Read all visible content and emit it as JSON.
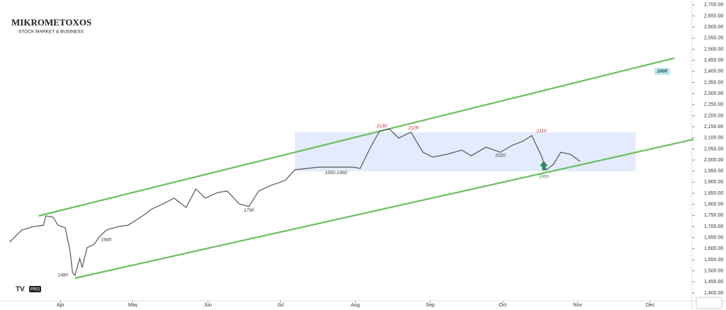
{
  "chart_data": {
    "type": "line",
    "brand": {
      "name": "MIKROMETOXOS",
      "tagline": "STOCK MARKET & BUSINESS",
      "badge": "PRO"
    },
    "x": [
      70,
      75,
      80,
      84,
      85,
      88,
      90,
      93,
      95,
      96,
      97,
      99,
      100,
      102,
      105,
      107,
      110,
      115,
      119,
      125,
      129,
      134,
      138,
      143,
      147,
      151,
      156,
      160,
      165,
      169,
      173,
      178,
      184,
      188,
      193,
      198,
      204,
      212,
      215,
      219,
      223,
      227,
      231,
      236,
      241,
      245,
      251,
      257,
      261,
      267,
      273,
      278,
      282,
      286,
      290,
      292,
      295,
      298,
      302,
      306
    ],
    "series": [
      {
        "color": "#555555",
        "values": [
          1630,
          1684,
          1700,
          1706,
          1748,
          1742,
          1706,
          1694,
          1588,
          1492,
          1480,
          1556,
          1515,
          1604,
          1620,
          1652,
          1684,
          1700,
          1706,
          1748,
          1780,
          1805,
          1828,
          1786,
          1869,
          1828,
          1853,
          1860,
          1802,
          1790,
          1860,
          1885,
          1908,
          1956,
          1962,
          1968,
          1968,
          1968,
          1962,
          2051,
          2130,
          2141,
          2099,
          2126,
          2035,
          2013,
          2026,
          2045,
          2019,
          2058,
          2035,
          2067,
          2083,
          2110,
          2019,
          1955,
          1981,
          2035,
          2026,
          1994
        ]
      }
    ],
    "channels": [
      {
        "color": "#6abf5e",
        "x": [
          82,
          345
        ],
        "values": [
          1748,
          2460
        ]
      },
      {
        "color": "#6abf5e",
        "x": [
          97,
          353
        ],
        "values": [
          1467,
          2093
        ]
      }
    ],
    "range_box": {
      "color": "#dce6fb",
      "x": [
        188,
        329
      ],
      "values": [
        1949,
        2125
      ]
    },
    "annotations": [
      {
        "text": "2130",
        "x": 224,
        "y": 2152,
        "color": "#c62828"
      },
      {
        "text": "2126",
        "x": 237,
        "y": 2145,
        "color": "#c62828"
      },
      {
        "text": "2110",
        "x": 290,
        "y": 2130,
        "color": "#c62828"
      },
      {
        "text": "2020",
        "x": 273,
        "y": 2020,
        "color": "#333333"
      },
      {
        "text": "1955",
        "x": 291,
        "y": 1925,
        "color": "#2e8b57"
      },
      {
        "text": "1950-1960",
        "x": 205,
        "y": 1942,
        "color": "#333333"
      },
      {
        "text": "1790",
        "x": 169,
        "y": 1772,
        "color": "#333333"
      },
      {
        "text": "1645",
        "x": 110,
        "y": 1640,
        "color": "#333333"
      },
      {
        "text": "1480",
        "x": 92,
        "y": 1480,
        "color": "#333333"
      },
      {
        "text": "2400",
        "x": 340,
        "y": 2400,
        "color": "#1a4d5c"
      }
    ],
    "xlim": [
      66,
      352
    ],
    "xticks": [
      {
        "value": 91,
        "label": "Apr"
      },
      {
        "value": 121,
        "label": "May"
      },
      {
        "value": 152,
        "label": "Jun"
      },
      {
        "value": 182,
        "label": "Jul"
      },
      {
        "value": 213,
        "label": "Aug"
      },
      {
        "value": 244,
        "label": "Sep"
      },
      {
        "value": 274,
        "label": "Oct"
      },
      {
        "value": 305,
        "label": "Nov"
      },
      {
        "value": 335,
        "label": "Dec"
      }
    ],
    "ylim": [
      1368,
      2722
    ],
    "yticks": [
      {
        "value": 1400,
        "label": "1,400.00"
      },
      {
        "value": 1450,
        "label": "1,450.00"
      },
      {
        "value": 1500,
        "label": "1,500.00"
      },
      {
        "value": 1550,
        "label": "1,550.00"
      },
      {
        "value": 1600,
        "label": "1,600.00"
      },
      {
        "value": 1650,
        "label": "1,650.00"
      },
      {
        "value": 1700,
        "label": "1,700.00"
      },
      {
        "value": 1750,
        "label": "1,750.00"
      },
      {
        "value": 1800,
        "label": "1,800.00"
      },
      {
        "value": 1850,
        "label": "1,850.00"
      },
      {
        "value": 1900,
        "label": "1,900.00"
      },
      {
        "value": 1950,
        "label": "1,950.00"
      },
      {
        "value": 2000,
        "label": "2,000.00"
      },
      {
        "value": 2050,
        "label": "2,050.00"
      },
      {
        "value": 2100,
        "label": "2,100.00"
      },
      {
        "value": 2150,
        "label": "2,150.00"
      },
      {
        "value": 2200,
        "label": "2,200.00"
      },
      {
        "value": 2250,
        "label": "2,250.00"
      },
      {
        "value": 2300,
        "label": "2,300.00"
      },
      {
        "value": 2350,
        "label": "2,350.00"
      },
      {
        "value": 2400,
        "label": "2,400.00"
      },
      {
        "value": 2450,
        "label": "2,450.00"
      },
      {
        "value": 2500,
        "label": "2,500.00"
      },
      {
        "value": 2550,
        "label": "2,550.00"
      },
      {
        "value": 2600,
        "label": "2,600.00"
      },
      {
        "value": 2650,
        "label": "2,650.00"
      },
      {
        "value": 2700,
        "label": "2,700.00"
      }
    ]
  }
}
